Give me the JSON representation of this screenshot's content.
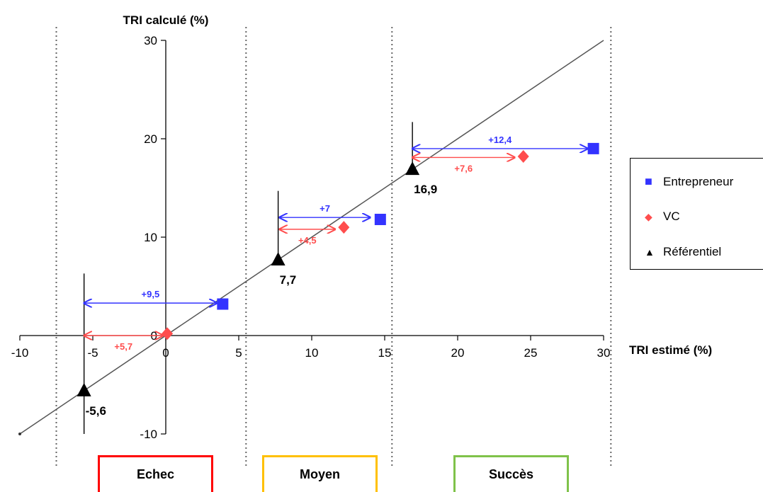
{
  "chart_data": {
    "type": "scatter",
    "xlabel": "TRI estimé (%)",
    "ylabel": "TRI calculé (%)",
    "xlim": [
      -10,
      30
    ],
    "ylim": [
      -10,
      30
    ],
    "x_ticks": [
      "-10",
      "-5",
      "0",
      "5",
      "10",
      "15",
      "20",
      "25",
      "30"
    ],
    "y_ticks": [
      "-10",
      "0",
      "10",
      "20",
      "30"
    ],
    "diagonal_line": {
      "from": [
        -10,
        -10
      ],
      "to": [
        30,
        30
      ]
    },
    "zone_separators_x": [
      -7.5,
      5.5,
      15.5,
      30.5
    ],
    "series": [
      {
        "name": "Entrepreneur",
        "marker": "square",
        "color": "#3333ff",
        "points": [
          {
            "x": 3.9,
            "y": 3.2
          },
          {
            "x": 14.7,
            "y": 11.8
          },
          {
            "x": 29.3,
            "y": 19.0
          }
        ]
      },
      {
        "name": "VC",
        "marker": "diamond",
        "color": "#ff4d4d",
        "points": [
          {
            "x": 0.1,
            "y": 0.2
          },
          {
            "x": 12.2,
            "y": 11.0
          },
          {
            "x": 24.5,
            "y": 18.2
          }
        ]
      },
      {
        "name": "Référentiel",
        "marker": "triangle",
        "color": "#000000",
        "points": [
          {
            "x": -5.6,
            "y": -5.6
          },
          {
            "x": 7.7,
            "y": 7.7
          },
          {
            "x": 16.9,
            "y": 16.9
          }
        ]
      }
    ],
    "point_labels": [
      {
        "text": "-5,6",
        "x": -5.6,
        "y": -5.6
      },
      {
        "text": "7,7",
        "x": 7.7,
        "y": 7.7
      },
      {
        "text": "16,9",
        "x": 16.9,
        "y": 16.9
      }
    ],
    "reference_lines": [
      {
        "x": -5.6,
        "y_from": -10,
        "y_to": 6.3
      },
      {
        "x": 7.7,
        "y_from": 7.7,
        "y_to": 14.7
      },
      {
        "x": 16.9,
        "y_from": 16.9,
        "y_to": 21.7
      }
    ],
    "arrows": [
      {
        "series": "Entrepreneur",
        "text": "+9,5",
        "x_from": -5.6,
        "x_to": 3.5,
        "y": 3.3,
        "label_side": "above"
      },
      {
        "series": "VC",
        "text": "+5,7",
        "x_from": -5.6,
        "x_to": -0.2,
        "y": 0.0,
        "label_side": "below"
      },
      {
        "series": "Entrepreneur",
        "text": "+7",
        "x_from": 7.8,
        "x_to": 14.0,
        "y": 12.0,
        "label_side": "above"
      },
      {
        "series": "VC",
        "text": "+4,5",
        "x_from": 7.8,
        "x_to": 11.6,
        "y": 10.8,
        "label_side": "below"
      },
      {
        "series": "Entrepreneur",
        "text": "+12,4",
        "x_from": 16.9,
        "x_to": 28.9,
        "y": 19.0,
        "label_side": "above"
      },
      {
        "series": "VC",
        "text": "+7,6",
        "x_from": 16.9,
        "x_to": 23.9,
        "y": 18.1,
        "label_side": "below"
      }
    ],
    "legend_position": "right",
    "grid": false
  },
  "legend": {
    "items": [
      {
        "label": "Entrepreneur",
        "marker": "■",
        "color": "#3333ff"
      },
      {
        "label": "VC",
        "marker": "◆",
        "color": "#ff4d4d"
      },
      {
        "label": "Référentiel",
        "marker": "▲",
        "color": "#000000"
      }
    ]
  },
  "categories": [
    {
      "label": "Echec",
      "color": "#ff0000"
    },
    {
      "label": "Moyen",
      "color": "#ffc000"
    },
    {
      "label": "Succès",
      "color": "#7fc24a"
    }
  ]
}
